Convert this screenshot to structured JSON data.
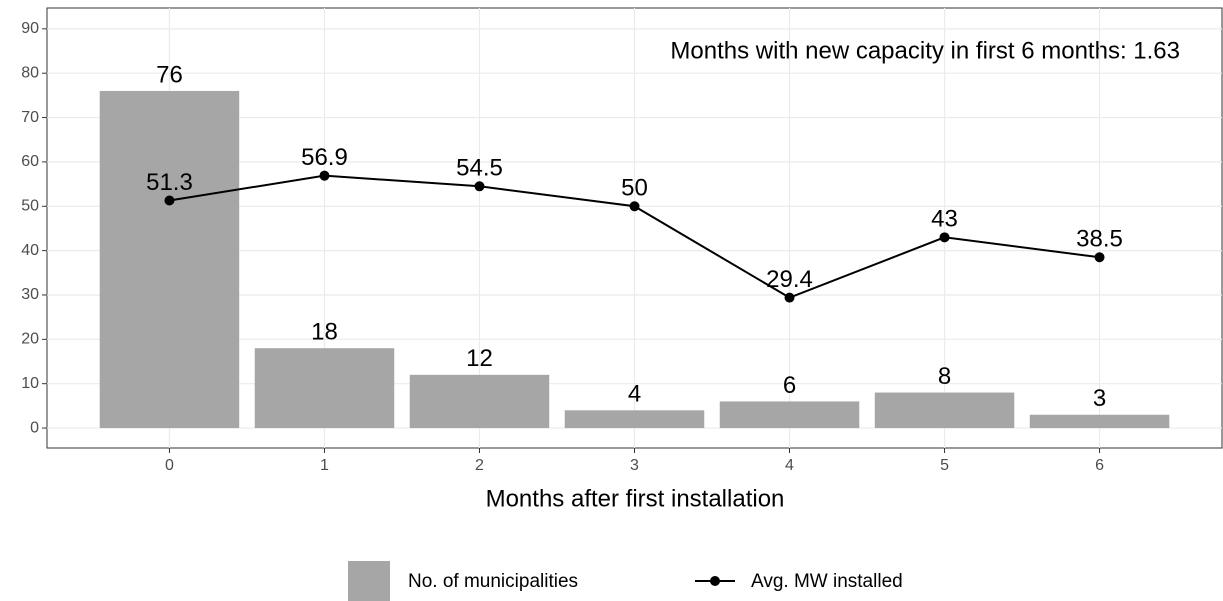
{
  "chart_data": {
    "type": "bar_line",
    "x_label": "Months after first installation",
    "annotation": "Months with new capacity in first 6 months: 1.63",
    "categories": [
      "0",
      "1",
      "2",
      "3",
      "4",
      "5",
      "6"
    ],
    "series": [
      {
        "name": "No. of municipalities",
        "type": "bar",
        "color": "#a6a6a6",
        "values": [
          76,
          18,
          12,
          4,
          6,
          8,
          3
        ]
      },
      {
        "name": "Avg. MW installed",
        "type": "line",
        "color": "#000000",
        "values": [
          51.3,
          56.9,
          54.5,
          50,
          29.4,
          43,
          38.5
        ]
      }
    ],
    "ylim": [
      -4.5,
      94.7
    ],
    "yticks": [
      0,
      10,
      20,
      30,
      40,
      50,
      60,
      70,
      80,
      90
    ],
    "grid": true
  }
}
